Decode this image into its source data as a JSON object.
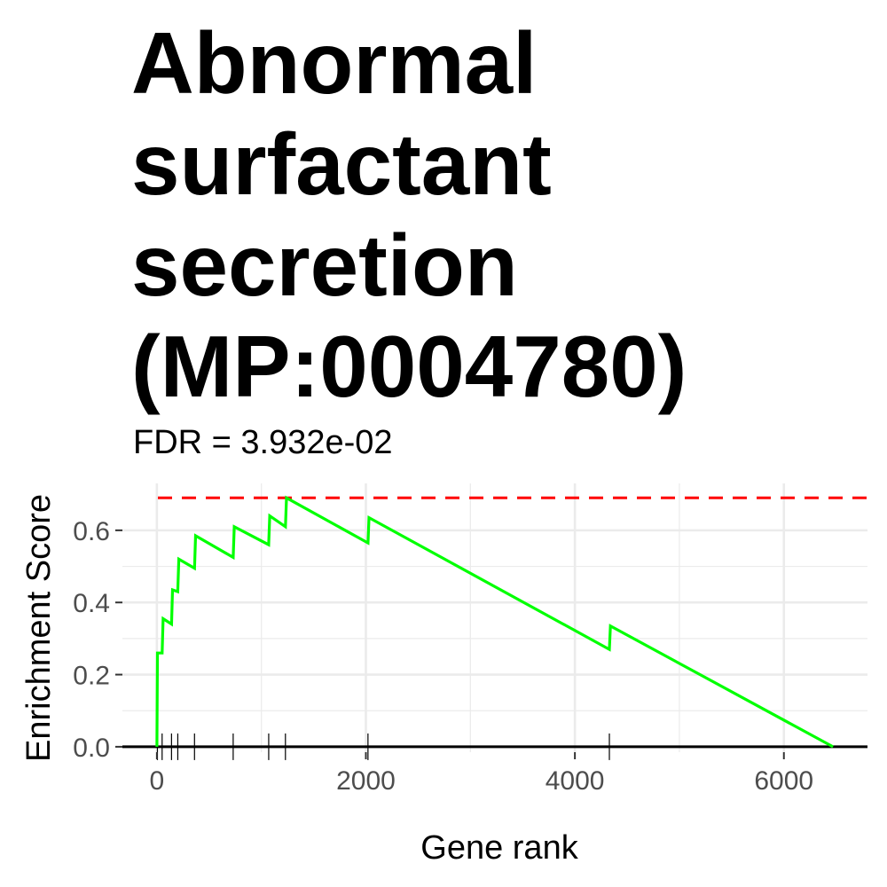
{
  "chart_data": {
    "type": "line",
    "title_lines": [
      "Abnormal",
      "surfactant",
      "secretion",
      "(MP:0004780)"
    ],
    "subtitle": "FDR = 3.932e-02",
    "xlabel": "Gene rank",
    "ylabel": "Enrichment Score",
    "xlim": [
      -330,
      6800
    ],
    "ylim": [
      -0.015,
      0.73
    ],
    "x_ticks": [
      0,
      2000,
      4000,
      6000
    ],
    "x_tick_labels": [
      "0",
      "2000",
      "4000",
      "6000"
    ],
    "y_ticks": [
      0.0,
      0.2,
      0.4,
      0.6
    ],
    "y_tick_labels": [
      "0.0",
      "0.2",
      "0.4",
      "0.6"
    ],
    "grid": true,
    "max_es": 0.69,
    "series": [
      {
        "color": "#00ff00",
        "x": [
          0,
          5,
          10,
          50,
          60,
          140,
          150,
          200,
          210,
          360,
          370,
          730,
          740,
          1070,
          1080,
          1230,
          1240,
          2020,
          2030,
          4330,
          4340,
          6470
        ],
        "y": [
          0.0,
          0.26,
          0.26,
          0.26,
          0.355,
          0.34,
          0.435,
          0.43,
          0.52,
          0.495,
          0.585,
          0.525,
          0.61,
          0.56,
          0.64,
          0.61,
          0.69,
          0.565,
          0.635,
          0.27,
          0.335,
          0.0
        ]
      }
    ],
    "hits": [
      5,
      50,
      140,
      200,
      360,
      730,
      1070,
      1230,
      2020,
      4330
    ],
    "colors": {
      "line": "#00ff00",
      "max_line": "#ff0000",
      "grid": "#ebebeb",
      "axis": "#000000",
      "tick_label": "#4d4d4d"
    }
  }
}
